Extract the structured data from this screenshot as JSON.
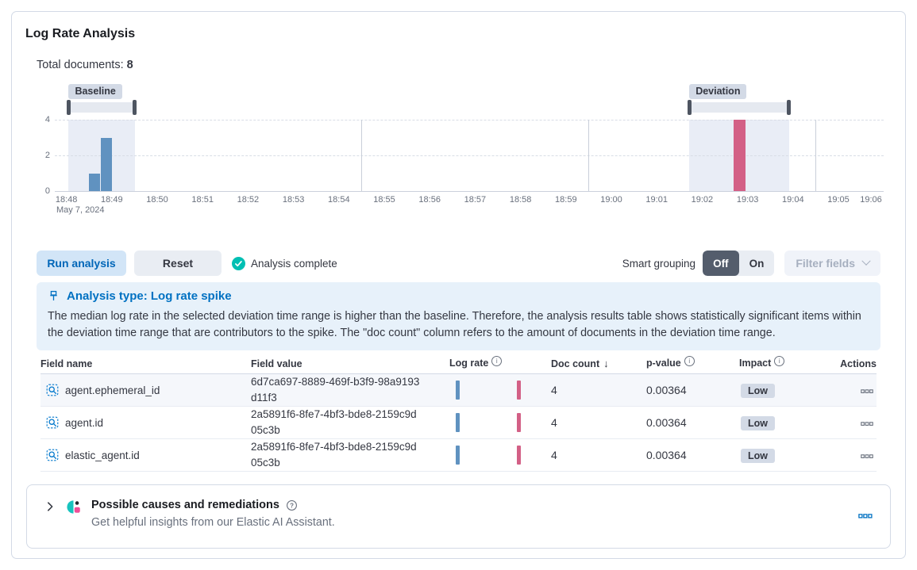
{
  "ui_colors": {
    "primary_blue": "#0071C2",
    "baseline_bar": "#6092C0",
    "deviation_bar": "#D36086",
    "success_green": "#00BFB3",
    "badge_background": "#D3DAE6",
    "callout_background": "#E7F1FA"
  },
  "header": {
    "title": "Log Rate Analysis",
    "total_documents_label": "Total documents:",
    "total_documents_value": "8"
  },
  "chart_data": {
    "type": "bar",
    "title": "",
    "xlabel": "",
    "ylabel": "",
    "date_label": "May 7, 2024",
    "x_ticks": [
      "18:48",
      "18:49",
      "18:50",
      "18:51",
      "18:52",
      "18:53",
      "18:54",
      "18:55",
      "18:56",
      "18:57",
      "18:58",
      "18:59",
      "19:00",
      "19:01",
      "19:02",
      "19:03",
      "19:04",
      "19:05",
      "19:06"
    ],
    "y_ticks": [
      0,
      2,
      4
    ],
    "ylim": [
      0,
      4
    ],
    "grid": true,
    "vertical_gridlines": [
      "18:55",
      "19:00",
      "19:05"
    ],
    "bars": [
      {
        "time_from": "18:49:00",
        "time_to": "18:49:15",
        "doc_count": 1,
        "series": "baseline"
      },
      {
        "time_from": "18:49:15",
        "time_to": "18:49:30",
        "doc_count": 3,
        "series": "baseline"
      },
      {
        "time_from": "19:03:12",
        "time_to": "19:03:27",
        "doc_count": 4,
        "series": "deviation"
      }
    ],
    "windows": [
      {
        "id": "baseline",
        "label": "Baseline",
        "from": "18:48:33",
        "to": "18:50:01"
      },
      {
        "id": "deviation",
        "label": "Deviation",
        "from": "19:02:13",
        "to": "19:04:25"
      }
    ],
    "series_colors": {
      "baseline": "#6092C0",
      "deviation": "#D36086"
    }
  },
  "controls": {
    "run_analysis_label": "Run analysis",
    "reset_label": "Reset",
    "status_label": "Analysis complete",
    "smart_grouping_label": "Smart grouping",
    "toggle_off": "Off",
    "toggle_on": "On",
    "toggle_selected": "Off",
    "filter_fields_label": "Filter fields"
  },
  "callout": {
    "title": "Analysis type: Log rate spike",
    "body": "The median log rate in the selected deviation time range is higher than the baseline. Therefore, the analysis results table shows statistically significant items within the deviation time range that are contributors to the spike. The \"doc count\" column refers to the amount of documents in the deviation time range."
  },
  "table": {
    "columns": [
      {
        "label": "Field name"
      },
      {
        "label": "Field value"
      },
      {
        "label": "Log rate",
        "info": true
      },
      {
        "label": "Doc count",
        "sort": "desc"
      },
      {
        "label": "p-value",
        "info": true
      },
      {
        "label": "Impact",
        "info": true
      },
      {
        "label": "Actions"
      }
    ],
    "rows": [
      {
        "field_name": "agent.ephemeral_id",
        "field_value": "6d7ca697-8889-469f-b3f9-98a9193d11f3",
        "doc_count": "4",
        "p_value": "0.00364",
        "impact": "Low"
      },
      {
        "field_name": "agent.id",
        "field_value": "2a5891f6-8fe7-4bf3-bde8-2159c9d05c3b",
        "doc_count": "4",
        "p_value": "0.00364",
        "impact": "Low"
      },
      {
        "field_name": "elastic_agent.id",
        "field_value": "2a5891f6-8fe7-4bf3-bde8-2159c9d05c3b",
        "doc_count": "4",
        "p_value": "0.00364",
        "impact": "Low"
      }
    ]
  },
  "ai_panel": {
    "title": "Possible causes and remediations",
    "subtitle": "Get helpful insights from our Elastic AI Assistant."
  }
}
